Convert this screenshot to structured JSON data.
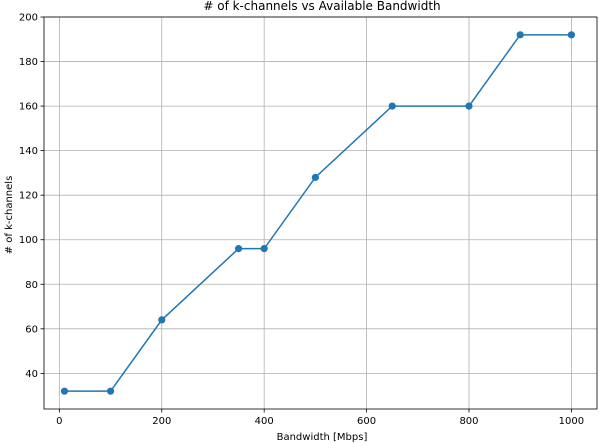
{
  "chart_data": {
    "type": "line",
    "title": "# of k-channels vs Available Bandwidth",
    "xlabel": "Bandwidth [Mbps]",
    "ylabel": "# of k-channels",
    "xlim": [
      -30,
      1050
    ],
    "ylim": [
      24,
      200
    ],
    "xticks": [
      0,
      200,
      400,
      600,
      800,
      1000
    ],
    "yticks": [
      40,
      60,
      80,
      100,
      120,
      140,
      160,
      180,
      200
    ],
    "grid": true,
    "series": [
      {
        "color": "#1f77b4",
        "marker": "circle",
        "x": [
          10,
          100,
          200,
          350,
          400,
          500,
          650,
          800,
          900,
          1000
        ],
        "y": [
          32,
          32,
          64,
          96,
          96,
          128,
          160,
          160,
          192,
          192
        ]
      }
    ]
  }
}
